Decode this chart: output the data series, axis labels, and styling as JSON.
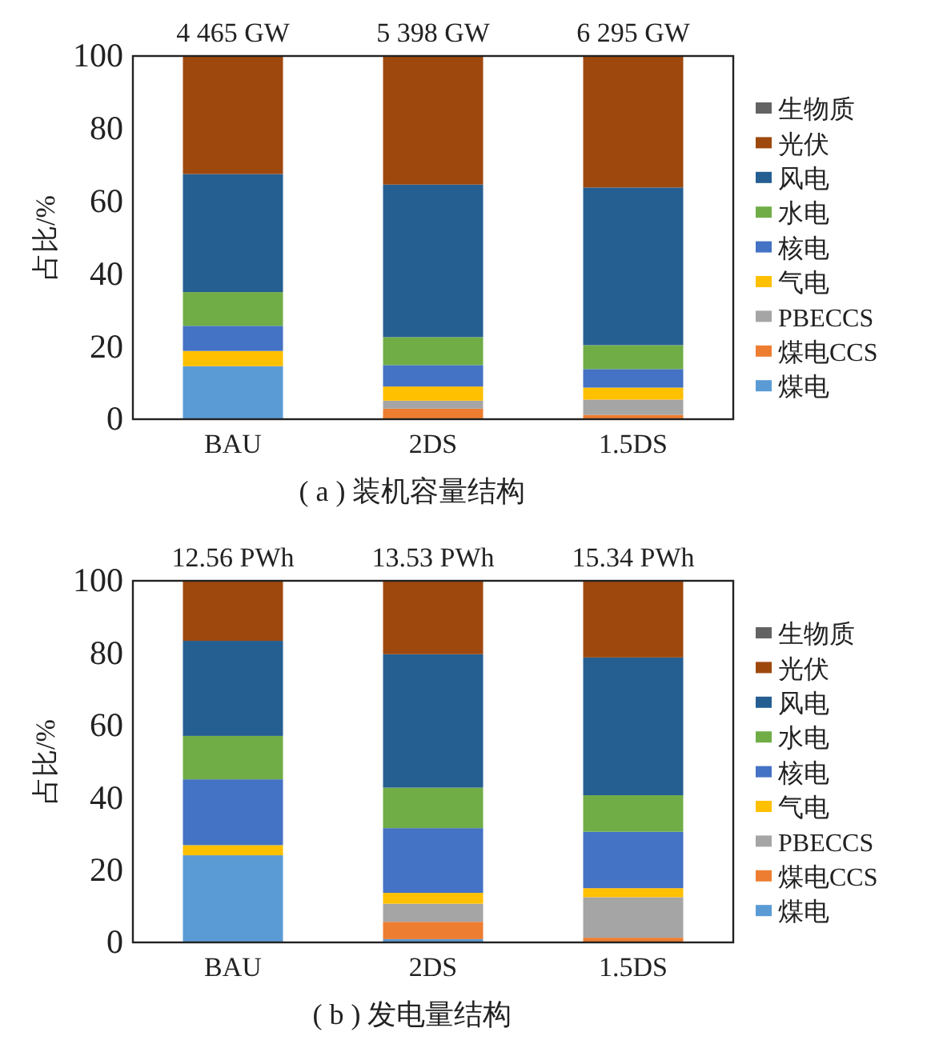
{
  "chart_data": [
    {
      "type": "bar",
      "stacked": true,
      "title": "( a ) 装机容量结构",
      "ylabel": "占比/%",
      "categories": [
        "BAU",
        "2DS",
        "1.5DS"
      ],
      "annotations": [
        {
          "text": "4 465 GW",
          "x": "BAU",
          "y": 100
        },
        {
          "text": "5 398 GW",
          "x": "2DS",
          "y": 100
        },
        {
          "text": "6 295 GW",
          "x": "1.5DS",
          "y": 100
        }
      ],
      "ylim": [
        0,
        100
      ],
      "yticks": [
        0,
        20,
        40,
        60,
        80,
        100
      ],
      "legend": "right",
      "grid": false,
      "series": [
        {
          "name": "煤电",
          "color": "#5b9bd5",
          "values": [
            14.6,
            0,
            0
          ]
        },
        {
          "name": "煤电CCS",
          "color": "#ed7d31",
          "values": [
            0,
            2.9,
            1.2
          ]
        },
        {
          "name": "PBECCS",
          "color": "#a5a5a5",
          "values": [
            0,
            2.2,
            4.2
          ]
        },
        {
          "name": "气电",
          "color": "#ffc000",
          "values": [
            4.2,
            3.9,
            3.3
          ]
        },
        {
          "name": "核电",
          "color": "#4472c4",
          "values": [
            6.9,
            5.9,
            5.1
          ]
        },
        {
          "name": "水电",
          "color": "#70ad47",
          "values": [
            9.3,
            7.7,
            6.6
          ]
        },
        {
          "name": "风电",
          "color": "#255e91",
          "values": [
            32.5,
            42.0,
            43.4
          ]
        },
        {
          "name": "光伏",
          "color": "#9e480e",
          "values": [
            32.5,
            35.4,
            36.2
          ]
        },
        {
          "name": "生物质",
          "color": "#636363",
          "values": [
            0,
            0,
            0
          ]
        }
      ]
    },
    {
      "type": "bar",
      "stacked": true,
      "title": "( b ) 发电量结构",
      "ylabel": "占比/%",
      "categories": [
        "BAU",
        "2DS",
        "1.5DS"
      ],
      "annotations": [
        {
          "text": "12.56 PWh",
          "x": "BAU",
          "y": 100
        },
        {
          "text": "13.53 PWh",
          "x": "2DS",
          "y": 100
        },
        {
          "text": "15.34 PWh",
          "x": "1.5DS",
          "y": 100
        }
      ],
      "ylim": [
        0,
        100
      ],
      "yticks": [
        0,
        20,
        40,
        60,
        80,
        100
      ],
      "legend": "right",
      "grid": false,
      "series": [
        {
          "name": "煤电",
          "color": "#5b9bd5",
          "values": [
            24.1,
            0.9,
            0
          ]
        },
        {
          "name": "煤电CCS",
          "color": "#ed7d31",
          "values": [
            0,
            4.8,
            1.3
          ]
        },
        {
          "name": "PBECCS",
          "color": "#a5a5a5",
          "values": [
            0,
            5.0,
            11.2
          ]
        },
        {
          "name": "气电",
          "color": "#ffc000",
          "values": [
            2.8,
            3.0,
            2.5
          ]
        },
        {
          "name": "核电",
          "color": "#4472c4",
          "values": [
            18.2,
            17.9,
            15.6
          ]
        },
        {
          "name": "水电",
          "color": "#70ad47",
          "values": [
            12.0,
            11.2,
            10.1
          ]
        },
        {
          "name": "风电",
          "color": "#255e91",
          "values": [
            26.3,
            36.9,
            38.1
          ]
        },
        {
          "name": "光伏",
          "color": "#9e480e",
          "values": [
            16.6,
            20.3,
            21.2
          ]
        },
        {
          "name": "生物质",
          "color": "#636363",
          "values": [
            0,
            0,
            0
          ]
        }
      ]
    }
  ]
}
